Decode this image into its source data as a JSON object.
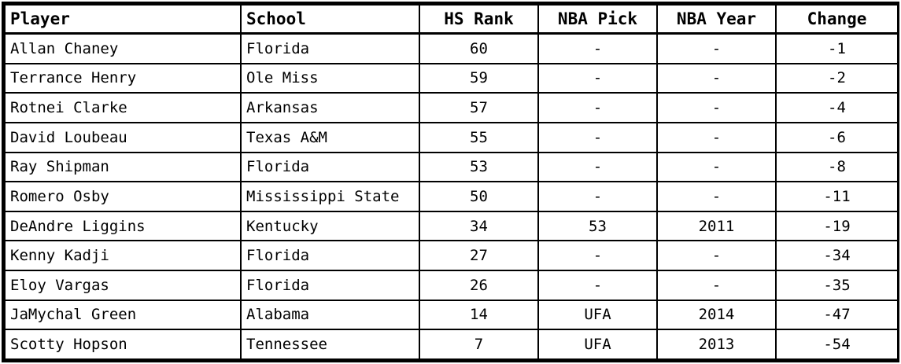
{
  "table": {
    "columns": [
      {
        "label": "Player",
        "align": "left"
      },
      {
        "label": "School",
        "align": "left"
      },
      {
        "label": "HS Rank",
        "align": "center"
      },
      {
        "label": "NBA Pick",
        "align": "center"
      },
      {
        "label": "NBA Year",
        "align": "center"
      },
      {
        "label": "Change",
        "align": "center"
      }
    ],
    "rows": [
      [
        "Allan Chaney",
        "Florida",
        "60",
        "-",
        "-",
        "-1"
      ],
      [
        "Terrance Henry",
        "Ole Miss",
        "59",
        "-",
        "-",
        "-2"
      ],
      [
        "Rotnei Clarke",
        "Arkansas",
        "57",
        "-",
        "-",
        "-4"
      ],
      [
        "David Loubeau",
        "Texas A&M",
        "55",
        "-",
        "-",
        "-6"
      ],
      [
        "Ray Shipman",
        "Florida",
        "53",
        "-",
        "-",
        "-8"
      ],
      [
        "Romero Osby",
        "Mississippi State",
        "50",
        "-",
        "-",
        "-11"
      ],
      [
        "DeAndre Liggins",
        "Kentucky",
        "34",
        "53",
        "2011",
        "-19"
      ],
      [
        "Kenny Kadji",
        "Florida",
        "27",
        "-",
        "-",
        "-34"
      ],
      [
        "Eloy Vargas",
        "Florida",
        "26",
        "-",
        "-",
        "-35"
      ],
      [
        "JaMychal Green",
        "Alabama",
        "14",
        "UFA",
        "2014",
        "-47"
      ],
      [
        "Scotty Hopson",
        "Tennessee",
        "7",
        "UFA",
        "2013",
        "-54"
      ]
    ]
  }
}
